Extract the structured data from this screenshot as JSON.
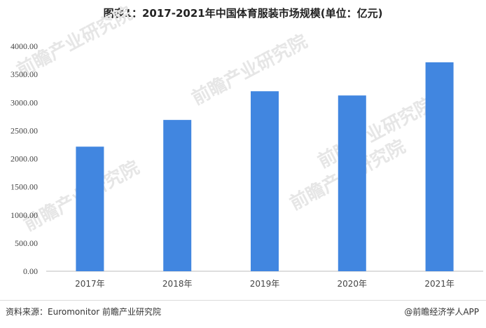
{
  "title": "图表1：2017-2021年中国体育服装市场规模(单位：亿元)",
  "footer": {
    "source": "资料来源：Euromonitor 前瞻产业研究院",
    "credit": "@前瞻经济学人APP"
  },
  "watermark": "前瞻产业研究院",
  "chart_data": {
    "type": "bar",
    "categories": [
      "2017年",
      "2018年",
      "2019年",
      "2020年",
      "2021年"
    ],
    "values": [
      2215,
      2690,
      3200,
      3125,
      3715
    ],
    "ylim": [
      0,
      4000
    ],
    "yticks": [
      "0.00",
      "500.00",
      "1000.00",
      "1500.00",
      "2000.00",
      "2500.00",
      "3000.00",
      "3500.00",
      "4000.00"
    ],
    "bar_color": "#4186e0",
    "grid": false
  }
}
